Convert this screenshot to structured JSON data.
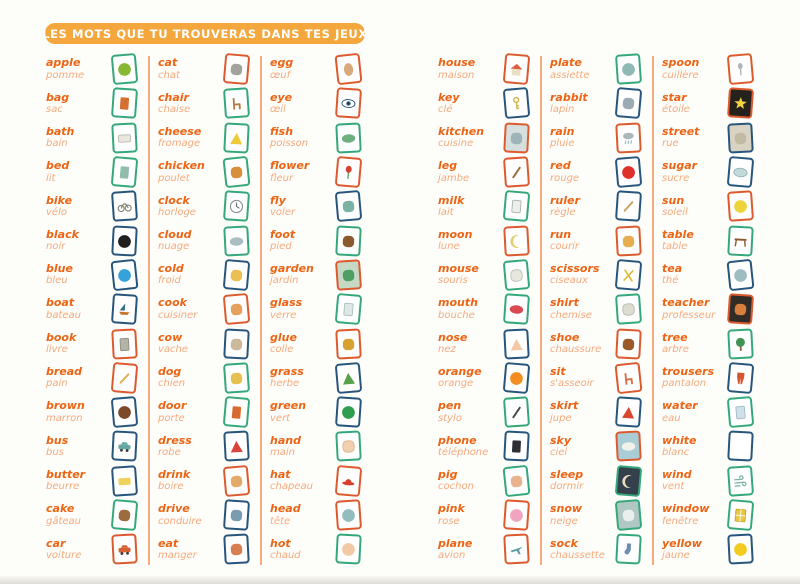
{
  "title": "LES MOTS QUE TU TROUVERAS DANS TES JEUX",
  "colors": {
    "banner": "#f4a73d",
    "word": "#ec6414",
    "translation": "#f7a97c",
    "divider": "#f5ab7e",
    "card_borders": {
      "green": "#35a87b",
      "navy": "#27557c",
      "red": "#dc5a2e"
    }
  },
  "columns": [
    {
      "entries": [
        {
          "en": "apple",
          "fr": "pomme",
          "border": "green",
          "icon": {
            "shape": "circle",
            "fill": "#86b832"
          }
        },
        {
          "en": "bag",
          "fr": "sac",
          "border": "green",
          "icon": {
            "shape": "rect",
            "fill": "#d4702f"
          }
        },
        {
          "en": "bath",
          "fr": "bain",
          "border": "green",
          "icon": {
            "shape": "wrect",
            "fill": "#e9e6dc",
            "stroke": "#b8b8ae"
          }
        },
        {
          "en": "bed",
          "fr": "lit",
          "border": "green",
          "icon": {
            "shape": "rect",
            "fill": "#8fbcab"
          }
        },
        {
          "en": "bike",
          "fr": "vélo",
          "border": "navy",
          "icon": {
            "shape": "wheels",
            "fill": "#7a7a6a"
          }
        },
        {
          "en": "black",
          "fr": "noir",
          "border": "navy",
          "icon": {
            "shape": "circle",
            "fill": "#221f1f"
          }
        },
        {
          "en": "blue",
          "fr": "bleu",
          "border": "navy",
          "icon": {
            "shape": "circle",
            "fill": "#35a3da"
          }
        },
        {
          "en": "boat",
          "fr": "bateau",
          "border": "navy",
          "icon": {
            "shape": "sail",
            "fill": "#2e6d8c"
          }
        },
        {
          "en": "book",
          "fr": "livre",
          "border": "red",
          "icon": {
            "shape": "rect",
            "fill": "#b5b2a6",
            "stroke": "#8f8c80"
          }
        },
        {
          "en": "bread",
          "fr": "pain",
          "border": "red",
          "icon": {
            "shape": "stick",
            "fill": "#e2b050"
          }
        },
        {
          "en": "brown",
          "fr": "marron",
          "border": "navy",
          "icon": {
            "shape": "circle",
            "fill": "#7c4a28"
          }
        },
        {
          "en": "bus",
          "fr": "bus",
          "border": "navy",
          "icon": {
            "shape": "car",
            "fill": "#64a9a2"
          }
        },
        {
          "en": "butter",
          "fr": "beurre",
          "border": "navy",
          "icon": {
            "shape": "wrect",
            "fill": "#edd35e"
          }
        },
        {
          "en": "cake",
          "fr": "gâteau",
          "border": "green",
          "icon": {
            "shape": "blob",
            "fill": "#9d6b40"
          }
        },
        {
          "en": "car",
          "fr": "voiture",
          "border": "red",
          "icon": {
            "shape": "car",
            "fill": "#d86133"
          }
        }
      ]
    },
    {
      "entries": [
        {
          "en": "cat",
          "fr": "chat",
          "border": "red",
          "icon": {
            "shape": "blob",
            "fill": "#a3a39e"
          }
        },
        {
          "en": "chair",
          "fr": "chaise",
          "border": "green",
          "icon": {
            "shape": "chair",
            "fill": "#b67a3e"
          }
        },
        {
          "en": "cheese",
          "fr": "fromage",
          "border": "green",
          "icon": {
            "shape": "triangle",
            "fill": "#efc93c"
          }
        },
        {
          "en": "chicken",
          "fr": "poulet",
          "border": "green",
          "icon": {
            "shape": "blob",
            "fill": "#d78f3b"
          }
        },
        {
          "en": "clock",
          "fr": "horloge",
          "border": "green",
          "icon": {
            "shape": "clock",
            "fill": "#ffffff"
          }
        },
        {
          "en": "cloud",
          "fr": "nuage",
          "border": "green",
          "icon": {
            "shape": "wellipse",
            "fill": "#a9bec2"
          }
        },
        {
          "en": "cold",
          "fr": "froid",
          "border": "navy",
          "icon": {
            "shape": "blob",
            "fill": "#ecc050"
          }
        },
        {
          "en": "cook",
          "fr": "cuisiner",
          "border": "red",
          "icon": {
            "shape": "blob",
            "fill": "#e5a05e"
          }
        },
        {
          "en": "cow",
          "fr": "vache",
          "border": "navy",
          "icon": {
            "shape": "blob",
            "fill": "#ccb99c"
          }
        },
        {
          "en": "dog",
          "fr": "chien",
          "border": "green",
          "icon": {
            "shape": "blob",
            "fill": "#e6c150"
          }
        },
        {
          "en": "door",
          "fr": "porte",
          "border": "green",
          "icon": {
            "shape": "rect",
            "fill": "#d8692f"
          }
        },
        {
          "en": "dress",
          "fr": "robe",
          "border": "navy",
          "icon": {
            "shape": "triangle",
            "fill": "#d84439"
          }
        },
        {
          "en": "drink",
          "fr": "boire",
          "border": "red",
          "icon": {
            "shape": "blob",
            "fill": "#e3ab69"
          }
        },
        {
          "en": "drive",
          "fr": "conduire",
          "border": "navy",
          "icon": {
            "shape": "blob",
            "fill": "#7a9cae"
          }
        },
        {
          "en": "eat",
          "fr": "manger",
          "border": "navy",
          "icon": {
            "shape": "blob",
            "fill": "#d87e53"
          }
        }
      ]
    },
    {
      "entries": [
        {
          "en": "egg",
          "fr": "œuf",
          "border": "red",
          "icon": {
            "shape": "ellipse",
            "fill": "#d9a97c"
          }
        },
        {
          "en": "eye",
          "fr": "œil",
          "border": "red",
          "icon": {
            "shape": "eye",
            "fill": "#2d5a7a"
          }
        },
        {
          "en": "fish",
          "fr": "poisson",
          "border": "green",
          "icon": {
            "shape": "wellipse",
            "fill": "#6fae7e"
          }
        },
        {
          "en": "flower",
          "fr": "fleur",
          "border": "red",
          "icon": {
            "shape": "flower",
            "fill": "#d8402f"
          }
        },
        {
          "en": "fly",
          "fr": "voler",
          "border": "navy",
          "icon": {
            "shape": "blob",
            "fill": "#7ab2a3"
          }
        },
        {
          "en": "foot",
          "fr": "pied",
          "border": "green",
          "icon": {
            "shape": "blob",
            "fill": "#8a5a2e"
          }
        },
        {
          "en": "garden",
          "fr": "jardin",
          "border": "red",
          "icon": {
            "shape": "blob",
            "fill": "#4f9e64",
            "bg": "#c6d9c4"
          }
        },
        {
          "en": "glass",
          "fr": "verre",
          "border": "green",
          "icon": {
            "shape": "rect",
            "fill": "#dde8e6",
            "stroke": "#a9bcbc"
          }
        },
        {
          "en": "glue",
          "fr": "colle",
          "border": "red",
          "icon": {
            "shape": "blob",
            "fill": "#d8a230"
          }
        },
        {
          "en": "grass",
          "fr": "herbe",
          "border": "navy",
          "icon": {
            "shape": "triangle",
            "fill": "#58a04b"
          }
        },
        {
          "en": "green",
          "fr": "vert",
          "border": "navy",
          "icon": {
            "shape": "circle",
            "fill": "#2f9e50"
          }
        },
        {
          "en": "hand",
          "fr": "main",
          "border": "green",
          "icon": {
            "shape": "blob",
            "fill": "#f2cfae",
            "stroke": "#d8b28e"
          }
        },
        {
          "en": "hat",
          "fr": "chapeau",
          "border": "red",
          "icon": {
            "shape": "hat",
            "fill": "#d83f2d"
          }
        },
        {
          "en": "head",
          "fr": "tête",
          "border": "red",
          "icon": {
            "shape": "circle",
            "fill": "#93bcbf"
          }
        },
        {
          "en": "hot",
          "fr": "chaud",
          "border": "green",
          "icon": {
            "shape": "circle",
            "fill": "#f2c9a5"
          }
        }
      ]
    },
    {
      "entries": [
        {
          "en": "house",
          "fr": "maison",
          "border": "red",
          "icon": {
            "shape": "house",
            "fill": "#d85f40"
          }
        },
        {
          "en": "key",
          "fr": "clé",
          "border": "navy",
          "icon": {
            "shape": "key",
            "fill": "#cdb14c"
          }
        },
        {
          "en": "kitchen",
          "fr": "cuisine",
          "border": "red",
          "icon": {
            "shape": "blob",
            "fill": "#9cb4b8",
            "bg": "#d6dfde"
          }
        },
        {
          "en": "leg",
          "fr": "jambe",
          "border": "red",
          "icon": {
            "shape": "stick",
            "fill": "#9a6b39"
          }
        },
        {
          "en": "milk",
          "fr": "lait",
          "border": "green",
          "icon": {
            "shape": "rect",
            "fill": "#ebeeea",
            "stroke": "#a9b0ac"
          }
        },
        {
          "en": "moon",
          "fr": "lune",
          "border": "red",
          "icon": {
            "shape": "crescent",
            "fill": "#e2cf6b"
          }
        },
        {
          "en": "mouse",
          "fr": "souris",
          "border": "green",
          "icon": {
            "shape": "blob",
            "fill": "#e7e7e0",
            "stroke": "#bcbcb4"
          }
        },
        {
          "en": "mouth",
          "fr": "bouche",
          "border": "green",
          "icon": {
            "shape": "wellipse",
            "fill": "#d84a50"
          }
        },
        {
          "en": "nose",
          "fr": "nez",
          "border": "navy",
          "icon": {
            "shape": "triangle",
            "fill": "#f2c9a5"
          }
        },
        {
          "en": "orange",
          "fr": "orange",
          "border": "navy",
          "icon": {
            "shape": "circle",
            "fill": "#f28d23"
          }
        },
        {
          "en": "pen",
          "fr": "stylo",
          "border": "green",
          "icon": {
            "shape": "stick",
            "fill": "#46464c"
          }
        },
        {
          "en": "phone",
          "fr": "téléphone",
          "border": "navy",
          "icon": {
            "shape": "rect",
            "fill": "#2e2e35"
          }
        },
        {
          "en": "pig",
          "fr": "cochon",
          "border": "green",
          "icon": {
            "shape": "blob",
            "fill": "#e7b38f"
          }
        },
        {
          "en": "pink",
          "fr": "rose",
          "border": "red",
          "icon": {
            "shape": "circle",
            "fill": "#efa4c0"
          }
        },
        {
          "en": "plane",
          "fr": "avion",
          "border": "red",
          "icon": {
            "shape": "plane",
            "fill": "#5f9ea6"
          }
        }
      ]
    },
    {
      "entries": [
        {
          "en": "plate",
          "fr": "assiette",
          "border": "green",
          "icon": {
            "shape": "circle",
            "fill": "#8fbab4"
          }
        },
        {
          "en": "rabbit",
          "fr": "lapin",
          "border": "navy",
          "icon": {
            "shape": "blob",
            "fill": "#9caab2"
          }
        },
        {
          "en": "rain",
          "fr": "pluie",
          "border": "red",
          "icon": {
            "shape": "rain",
            "fill": "#aab8bc"
          }
        },
        {
          "en": "red",
          "fr": "rouge",
          "border": "navy",
          "icon": {
            "shape": "circle",
            "fill": "#e0302b"
          }
        },
        {
          "en": "ruler",
          "fr": "règle",
          "border": "navy",
          "icon": {
            "shape": "stick",
            "fill": "#c9a35f"
          }
        },
        {
          "en": "run",
          "fr": "courir",
          "border": "red",
          "icon": {
            "shape": "blob",
            "fill": "#e6ae4f"
          }
        },
        {
          "en": "scissors",
          "fr": "ciseaux",
          "border": "navy",
          "icon": {
            "shape": "cross",
            "fill": "#e0bd33"
          }
        },
        {
          "en": "shirt",
          "fr": "chemise",
          "border": "green",
          "icon": {
            "shape": "blob",
            "fill": "#dcdcd1",
            "stroke": "#b5b5aa"
          }
        },
        {
          "en": "shoe",
          "fr": "chaussure",
          "border": "red",
          "icon": {
            "shape": "blob",
            "fill": "#9a592b"
          }
        },
        {
          "en": "sit",
          "fr": "s'asseoir",
          "border": "red",
          "icon": {
            "shape": "chair",
            "fill": "#d86b40"
          }
        },
        {
          "en": "skirt",
          "fr": "jupe",
          "border": "navy",
          "icon": {
            "shape": "triangle",
            "fill": "#d8462f"
          }
        },
        {
          "en": "sky",
          "fr": "ciel",
          "border": "red",
          "icon": {
            "shape": "wellipse",
            "fill": "#f2f2ec",
            "bg": "#aaccd5"
          }
        },
        {
          "en": "sleep",
          "fr": "dormir",
          "border": "green",
          "icon": {
            "shape": "crescent",
            "fill": "#e8e0c0",
            "bg": "#34404b"
          }
        },
        {
          "en": "snow",
          "fr": "neige",
          "border": "green",
          "icon": {
            "shape": "blob",
            "fill": "#e9efed",
            "bg": "#b0c8c3"
          }
        },
        {
          "en": "sock",
          "fr": "chaussette",
          "border": "green",
          "icon": {
            "shape": "sock",
            "fill": "#6f8db4"
          }
        }
      ]
    },
    {
      "entries": [
        {
          "en": "spoon",
          "fr": "cuillère",
          "border": "red",
          "icon": {
            "shape": "spoon",
            "fill": "#b2b6ba"
          }
        },
        {
          "en": "star",
          "fr": "étoile",
          "border": "red",
          "icon": {
            "shape": "star",
            "fill": "#f2d244",
            "bg": "#25221e"
          }
        },
        {
          "en": "street",
          "fr": "rue",
          "border": "navy",
          "icon": {
            "shape": "blob",
            "fill": "#c2bba4",
            "bg": "#d9d3c4"
          }
        },
        {
          "en": "sugar",
          "fr": "sucre",
          "border": "navy",
          "icon": {
            "shape": "wellipse",
            "fill": "#c4d9da",
            "stroke": "#8fb2b2"
          }
        },
        {
          "en": "sun",
          "fr": "soleil",
          "border": "red",
          "icon": {
            "shape": "circle",
            "fill": "#eed43b"
          }
        },
        {
          "en": "table",
          "fr": "table",
          "border": "green",
          "icon": {
            "shape": "table",
            "fill": "#8a5a2e"
          }
        },
        {
          "en": "tea",
          "fr": "thé",
          "border": "navy",
          "icon": {
            "shape": "circle",
            "fill": "#9dbdc1"
          }
        },
        {
          "en": "teacher",
          "fr": "professeur",
          "border": "red",
          "icon": {
            "shape": "blob",
            "fill": "#d8803b",
            "bg": "#312c28"
          }
        },
        {
          "en": "tree",
          "fr": "arbre",
          "border": "green",
          "icon": {
            "shape": "tree",
            "fill": "#3f9453"
          }
        },
        {
          "en": "trousers",
          "fr": "pantalon",
          "border": "navy",
          "icon": {
            "shape": "trousers",
            "fill": "#d85531"
          }
        },
        {
          "en": "water",
          "fr": "eau",
          "border": "green",
          "icon": {
            "shape": "rect",
            "fill": "#cfe0e8",
            "stroke": "#9fb8c4"
          }
        },
        {
          "en": "white",
          "fr": "blanc",
          "border": "navy",
          "icon": {
            "shape": "circle",
            "fill": "#ffffff"
          }
        },
        {
          "en": "wind",
          "fr": "vent",
          "border": "green",
          "icon": {
            "shape": "wind",
            "fill": "#7ab8a0"
          }
        },
        {
          "en": "window",
          "fr": "fenêtre",
          "border": "green",
          "icon": {
            "shape": "window",
            "fill": "#e9c83f",
            "stroke": "#c0a026"
          }
        },
        {
          "en": "yellow",
          "fr": "jaune",
          "border": "navy",
          "icon": {
            "shape": "circle",
            "fill": "#f2ca20"
          }
        }
      ]
    }
  ]
}
